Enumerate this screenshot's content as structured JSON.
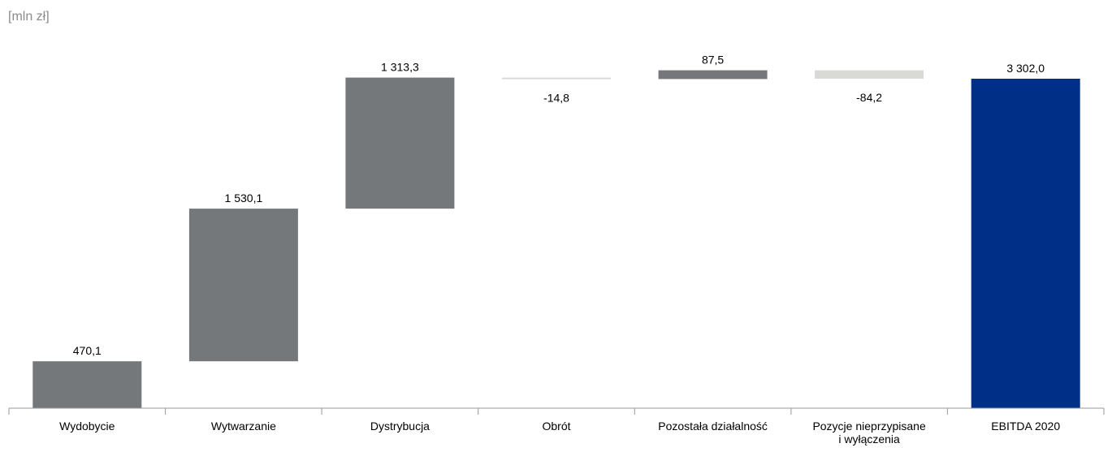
{
  "chart_data": {
    "type": "bar",
    "subtype": "waterfall",
    "unit_label": "[mln zł]",
    "categories": [
      [
        "Wydobycie"
      ],
      [
        "Wytwarzanie"
      ],
      [
        "Dystrybucja"
      ],
      [
        "Obrót"
      ],
      [
        "Pozostała działalność"
      ],
      [
        "Pozycje nieprzypisane",
        "i wyłączenia"
      ],
      [
        "EBITDA 2020"
      ]
    ],
    "values": [
      470.1,
      1530.1,
      1313.3,
      -14.8,
      87.5,
      -84.2,
      3302.0
    ],
    "value_labels": [
      "470,1",
      "1 530,1",
      "1 313,3",
      "-14,8",
      "87,5",
      "-84,2",
      "3 302,0"
    ],
    "bar_kinds": [
      "positive",
      "positive",
      "positive",
      "negative",
      "positive",
      "negative",
      "total"
    ],
    "ylim": [
      0,
      3400
    ],
    "grid": false,
    "legend": "none",
    "colors": {
      "positive": "#75787b",
      "negative": "#d9d9d6",
      "total": "#002f87",
      "axis": "#9a9a9a",
      "unit_text": "#8a8a8a",
      "text": "#000000"
    }
  }
}
